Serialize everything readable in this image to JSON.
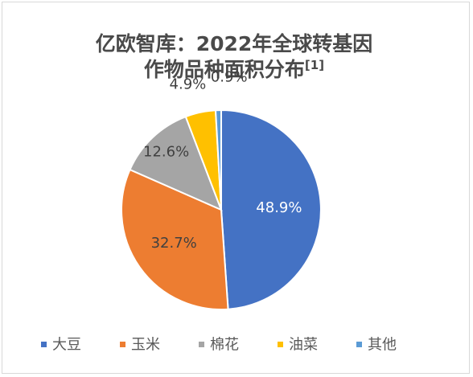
{
  "chart_data": {
    "type": "pie",
    "title": "亿欧智库：2022年全球转基因",
    "subtitle": "作物品种面积分布",
    "title_note": "[1]",
    "categories": [
      "大豆",
      "玉米",
      "棉花",
      "油菜",
      "其他"
    ],
    "values": [
      48.9,
      32.7,
      12.6,
      4.9,
      0.9
    ],
    "data_labels": [
      "48.9%",
      "32.7%",
      "12.6%",
      "4.9%",
      "0.9%"
    ],
    "colors": [
      "#4472C4",
      "#ED7D31",
      "#A5A5A5",
      "#FFC000",
      "#5B9BD5"
    ],
    "label_colors": [
      "#ffffff",
      "#404040",
      "#404040",
      "#404040",
      "#404040"
    ],
    "legend_position": "bottom",
    "start_angle": "12 o'clock, clockwise"
  }
}
